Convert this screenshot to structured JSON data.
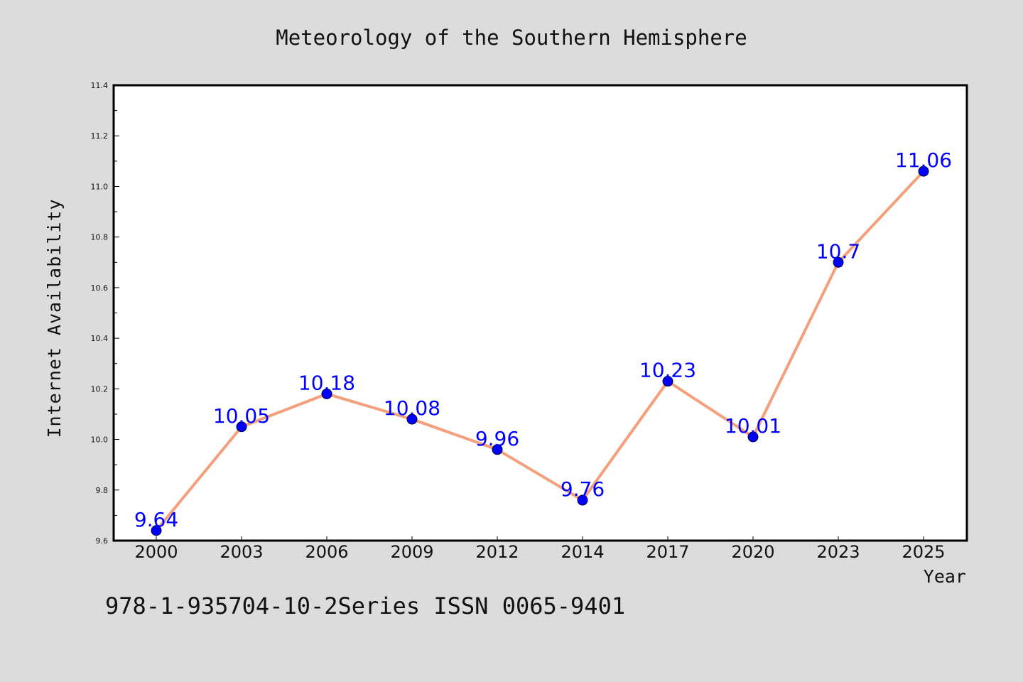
{
  "chart_data": {
    "type": "line",
    "title": "Meteorology of the Southern Hemisphere",
    "xlabel": "Year",
    "ylabel": "Internet Availability",
    "categories": [
      "2000",
      "2003",
      "2006",
      "2009",
      "2012",
      "2014",
      "2017",
      "2020",
      "2023",
      "2025"
    ],
    "series": [
      {
        "values": [
          9.64,
          10.05,
          10.18,
          10.08,
          9.96,
          9.76,
          10.23,
          10.01,
          10.7,
          11.06
        ],
        "labels": [
          "9.64",
          "10.05",
          "10.18",
          "10.08",
          "9.96",
          "9.76",
          "10.23",
          "10.01",
          "10.7",
          "11.06"
        ],
        "line_color": "#f4a07c",
        "marker_color": "#0000ff",
        "label_color": "#0000ff"
      }
    ],
    "ylim": [
      9.6,
      11.4
    ],
    "yticks": [
      "9.6",
      "9.8",
      "10.0",
      "10.2",
      "10.4",
      "10.6",
      "10.8",
      "11.0",
      "11.2",
      "11.4"
    ],
    "grid": false,
    "legend": "none"
  },
  "footnote": "978-1-935704-10-2Series ISSN 0065-9401",
  "colors": {
    "background": "#dcdcdc",
    "plot_background": "#ffffff"
  }
}
